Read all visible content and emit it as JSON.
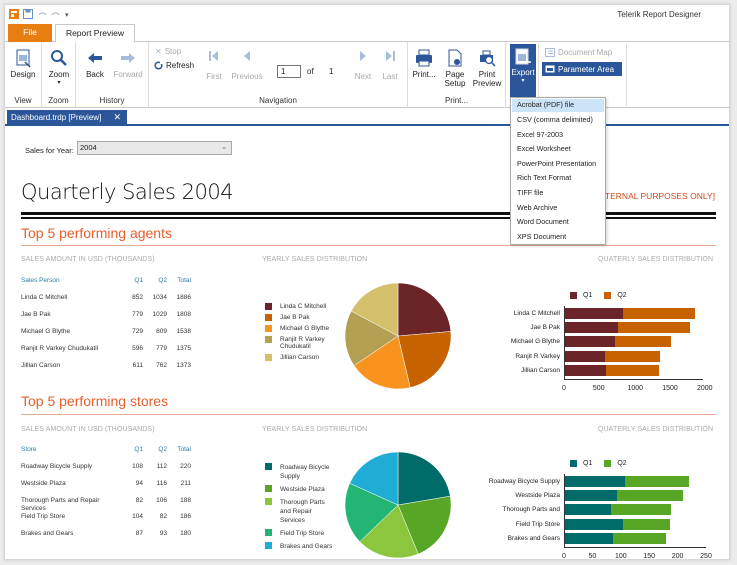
{
  "window": {
    "app_title": "Telerik Report Designer"
  },
  "quick_access": [
    "app-icon",
    "save-icon",
    "undo-icon",
    "redo-icon",
    "customize-icon"
  ],
  "ribbon_tabs": [
    {
      "label": "File",
      "active": false
    },
    {
      "label": "Report Preview",
      "active": true
    }
  ],
  "ribbon": {
    "view": {
      "label": "View",
      "design": "Design"
    },
    "zoom": {
      "label": "Zoom",
      "zoom": "Zoom"
    },
    "history": {
      "label": "History",
      "back": "Back",
      "forward": "Forward"
    },
    "navigation": {
      "label": "Navigation",
      "stop": "Stop",
      "refresh": "Refresh",
      "first": "First",
      "previous": "Previous",
      "page_value": "1",
      "of": "of",
      "total_pages": "1",
      "next": "Next",
      "last": "Last"
    },
    "print": {
      "label": "Print...",
      "print": "Print...",
      "page_setup_1": "Page",
      "page_setup_2": "Setup",
      "print_preview_1": "Print",
      "print_preview_2": "Preview"
    },
    "export": {
      "label": "Export"
    },
    "document_map": "Document Map",
    "parameter_area": "Parameter Area"
  },
  "export_menu": [
    "Acrobat (PDF) file",
    "CSV (comma delimited)",
    "Excel 97-2003",
    "Excel Worksheet",
    "PowerPoint Presentation",
    "Rich Text Format",
    "TIFF file",
    "Web Archive",
    "Word Document",
    "XPS Document"
  ],
  "document_tab": {
    "label": "Dashboard.trdp [Preview]",
    "close": "✕"
  },
  "parameters": {
    "label": "Sales for Year:",
    "value": "2004"
  },
  "report": {
    "title": "Quarterly Sales 2004",
    "notice": "NTERNAL PURPOSES ONLY]",
    "agents": {
      "title": "Top 5 performing agents",
      "table_label": "SALES AMOUNT IN USD (THOUSANDS)",
      "pie_label": "YEARLY SALES DISTRIBUTION",
      "bar_label": "QUATERLY SALES DISTRIBUTION",
      "headers": [
        "Sales Person",
        "Q1",
        "Q2",
        "Total"
      ],
      "rows": [
        [
          "Linda C Mitchell",
          "852",
          "1034",
          "1886"
        ],
        [
          "Jae B Pak",
          "779",
          "1029",
          "1808"
        ],
        [
          "Michael G Blythe",
          "729",
          "809",
          "1538"
        ],
        [
          "Ranjit R Varkey Chudukatil",
          "596",
          "779",
          "1375"
        ],
        [
          "Jillian  Carson",
          "611",
          "762",
          "1373"
        ]
      ],
      "legend": [
        "Linda C Mitchell",
        "Jae B Pak",
        "Michael G Blythe",
        "Ranjit R Varkey Chudukatil",
        "Jillian  Carson"
      ],
      "bar_categories": [
        "Linda C Mitchell",
        "Jae B Pak",
        "Michael G Blythe",
        "Ranjit R Varkey",
        "Jillian  Carson"
      ],
      "colors": [
        "#6b2428",
        "#c66200",
        "#f7931e",
        "#b3a052",
        "#d4bf6a"
      ],
      "q1_color": "#6b2428",
      "q2_color": "#c66200",
      "ticks": [
        "0",
        "500",
        "1000",
        "1500",
        "2000"
      ]
    },
    "stores": {
      "title": "Top 5 performing stores",
      "table_label": "SALES AMOUNT IN USD (THOUSANDS)",
      "pie_label": "YEARLY SALES DISTRIBUTION",
      "bar_label": "QUATERLY SALES DISTRIBUTION",
      "headers": [
        "Store",
        "Q1",
        "Q2",
        "Total"
      ],
      "rows": [
        [
          "Roadway Bicycle Supply",
          "108",
          "112",
          "220"
        ],
        [
          "Westside Plaza",
          "94",
          "116",
          "211"
        ],
        [
          "Thorough Parts and Repair Services",
          "82",
          "106",
          "188"
        ],
        [
          "Field Trip Store",
          "104",
          "82",
          "186"
        ],
        [
          "Brakes and Gears",
          "87",
          "93",
          "180"
        ]
      ],
      "legend": [
        "Roadway Bicycle Supply",
        "Westside Plaza",
        "Thorough Parts and Repair Services",
        "Field Trip Store",
        "Brakes and Gears"
      ],
      "bar_categories": [
        "Roadway Bicycle Supply",
        "Westside Plaza",
        "Thorough Parts and",
        "Field Trip Store",
        "Brakes and Gears"
      ],
      "colors": [
        "#006b68",
        "#57a626",
        "#8cc63f",
        "#22b573",
        "#1fadd6"
      ],
      "q1_color": "#006b68",
      "q2_color": "#57a626",
      "ticks": [
        "0",
        "50",
        "100",
        "150",
        "200",
        "250"
      ]
    }
  },
  "chart_data": [
    {
      "type": "pie",
      "title": "YEARLY SALES DISTRIBUTION",
      "categories": [
        "Linda C Mitchell",
        "Jae B Pak",
        "Michael G Blythe",
        "Ranjit R Varkey Chudukatil",
        "Jillian  Carson"
      ],
      "values": [
        1886,
        1808,
        1538,
        1375,
        1373
      ]
    },
    {
      "type": "bar",
      "title": "QUATERLY SALES DISTRIBUTION",
      "orientation": "horizontal-stacked",
      "categories": [
        "Linda C Mitchell",
        "Jae B Pak",
        "Michael G Blythe",
        "Ranjit R Varkey",
        "Jillian  Carson"
      ],
      "series": [
        {
          "name": "Q1",
          "values": [
            852,
            779,
            729,
            596,
            611
          ]
        },
        {
          "name": "Q2",
          "values": [
            1034,
            1029,
            809,
            779,
            762
          ]
        }
      ],
      "xlim": [
        0,
        2000
      ],
      "legend_position": "top"
    },
    {
      "type": "pie",
      "title": "YEARLY SALES DISTRIBUTION",
      "categories": [
        "Roadway Bicycle Supply",
        "Westside Plaza",
        "Thorough Parts and Repair Services",
        "Field Trip Store",
        "Brakes and Gears"
      ],
      "values": [
        220,
        211,
        188,
        186,
        180
      ]
    },
    {
      "type": "bar",
      "title": "QUATERLY SALES DISTRIBUTION",
      "orientation": "horizontal-stacked",
      "categories": [
        "Roadway Bicycle Supply",
        "Westside Plaza",
        "Thorough Parts and",
        "Field Trip Store",
        "Brakes and Gears"
      ],
      "series": [
        {
          "name": "Q1",
          "values": [
            108,
            94,
            82,
            104,
            87
          ]
        },
        {
          "name": "Q2",
          "values": [
            112,
            116,
            106,
            82,
            93
          ]
        }
      ],
      "xlim": [
        0,
        250
      ],
      "legend_position": "top"
    }
  ]
}
